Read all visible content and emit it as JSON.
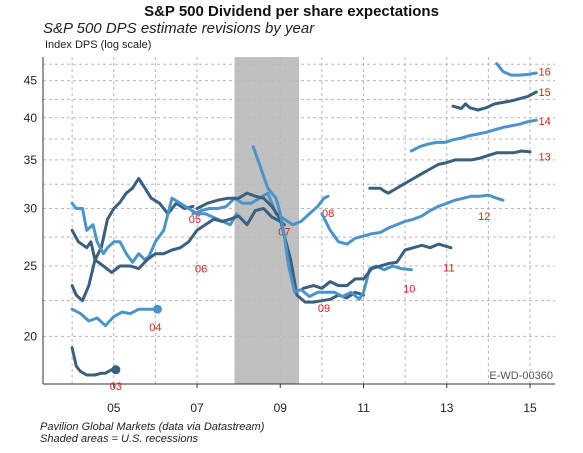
{
  "chart_data": {
    "type": "line",
    "title": "S&P 500 Dividend per share expectations",
    "subtitle": "S&P 500 DPS estimate revisions by year",
    "ylabel": "Index DPS (log scale)",
    "xlabel": "",
    "yscale": "log",
    "ylim": [
      17.2,
      48.5
    ],
    "xlim": [
      2003.3,
      2015.6
    ],
    "yticks": [
      20,
      25,
      30,
      35,
      40,
      45
    ],
    "xticks": [
      {
        "value": 2005,
        "label": "05"
      },
      {
        "value": 2007,
        "label": "07"
      },
      {
        "value": 2009,
        "label": "09"
      },
      {
        "value": 2011,
        "label": "11"
      },
      {
        "value": 2013,
        "label": "13"
      },
      {
        "value": 2015,
        "label": "15"
      }
    ],
    "recession": [
      2007.9,
      2009.45
    ],
    "grid": true,
    "watermark": "E-WD-00360",
    "colors": {
      "dark": "#3b5f7f",
      "light": "#4b94c9",
      "label": "#e0201b",
      "recession": "#c0c0c0",
      "grid": "#b8b8b8"
    },
    "series": [
      {
        "name": "03",
        "color": "#3b5f7f",
        "end_marker": true,
        "label_pos": [
          2005.05,
          17.1
        ],
        "x": [
          2004.0,
          2004.1,
          2004.2,
          2004.35,
          2004.55,
          2004.7,
          2004.8,
          2004.95,
          2005.05
        ],
        "y": [
          19.3,
          18.2,
          17.9,
          17.7,
          17.7,
          17.8,
          17.8,
          18.0,
          18.0
        ]
      },
      {
        "name": "04",
        "color": "#4b94c9",
        "end_marker": true,
        "label_pos": [
          2006.0,
          20.6
        ],
        "x": [
          2004.0,
          2004.2,
          2004.4,
          2004.6,
          2004.8,
          2005.0,
          2005.2,
          2005.4,
          2005.6,
          2005.8,
          2006.05
        ],
        "y": [
          21.8,
          21.5,
          21.0,
          21.2,
          20.7,
          21.3,
          21.6,
          21.5,
          21.8,
          21.8,
          21.8
        ]
      },
      {
        "name": "05",
        "color": "#3b5f7f",
        "label_pos": [
          2006.95,
          29.0
        ],
        "x": [
          2004.0,
          2004.1,
          2004.25,
          2004.4,
          2004.55,
          2004.7,
          2004.85,
          2005.0,
          2005.15,
          2005.3,
          2005.45,
          2005.6,
          2005.75,
          2005.9,
          2006.1,
          2006.3,
          2006.5,
          2006.7,
          2006.9
        ],
        "y": [
          23.5,
          22.8,
          22.4,
          23.5,
          25.5,
          26.5,
          29.0,
          30.0,
          30.6,
          31.5,
          32.0,
          33.0,
          32.0,
          31.0,
          30.5,
          29.5,
          30.5,
          30.0,
          30.2
        ]
      },
      {
        "name": "06",
        "color": "#4b94c9",
        "label_pos": [
          2007.1,
          24.8
        ],
        "x": [
          2004.0,
          2004.1,
          2004.25,
          2004.35,
          2004.5,
          2004.6,
          2004.75,
          2004.85,
          2005.0,
          2005.15,
          2005.3,
          2005.45,
          2005.6,
          2005.75,
          2005.85,
          2006.0,
          2006.2,
          2006.4,
          2006.6,
          2006.8,
          2007.0,
          2007.2,
          2007.5,
          2007.8,
          2007.95
        ],
        "y": [
          30.5,
          30.0,
          30.0,
          28.0,
          28.5,
          27.0,
          26.0,
          26.5,
          27.0,
          27.0,
          26.0,
          25.3,
          26.0,
          25.5,
          25.8,
          27.0,
          28.0,
          31.0,
          30.5,
          30.0,
          29.5,
          29.5,
          29.0,
          28.5,
          29.5
        ]
      },
      {
        "name": "07",
        "color": "#3b5f7f",
        "label_pos": [
          2009.1,
          27.9
        ],
        "x": [
          2004.0,
          2004.15,
          2004.35,
          2004.45,
          2004.55,
          2004.75,
          2004.95,
          2005.15,
          2005.4,
          2005.6,
          2005.8,
          2006.0,
          2006.2,
          2006.4,
          2006.6,
          2006.8,
          2007.0,
          2007.2,
          2007.4,
          2007.6,
          2007.8,
          2008.0,
          2008.2,
          2008.4,
          2008.6,
          2008.8,
          2009.0,
          2009.1
        ],
        "y": [
          28.0,
          27.0,
          26.5,
          27.0,
          25.5,
          25.0,
          24.5,
          25.0,
          25.0,
          24.8,
          25.5,
          26.0,
          26.0,
          26.3,
          26.5,
          27.0,
          28.0,
          28.5,
          29.0,
          28.8,
          29.0,
          29.3,
          28.5,
          29.8,
          30.0,
          29.2,
          28.8,
          28.5
        ]
      },
      {
        "name": "08",
        "color": "#4b94c9",
        "label_pos": [
          2010.15,
          29.6
        ],
        "x": [
          2006.9,
          2007.1,
          2007.3,
          2007.5,
          2007.7,
          2007.9,
          2008.1,
          2008.3,
          2008.5,
          2008.7,
          2008.9,
          2009.1,
          2009.3,
          2009.5,
          2009.7,
          2009.9,
          2010.05,
          2010.15
        ],
        "y": [
          29.5,
          29.8,
          30.0,
          30.0,
          30.2,
          31.0,
          30.5,
          30.5,
          31.0,
          31.5,
          29.5,
          29.0,
          28.5,
          28.8,
          29.5,
          30.2,
          31.0,
          31.2
        ]
      },
      {
        "name": "09",
        "color": "#3b5f7f",
        "label_pos": [
          2010.05,
          21.9
        ],
        "x": [
          2007.0,
          2007.25,
          2007.5,
          2007.75,
          2008.0,
          2008.2,
          2008.4,
          2008.6,
          2008.8,
          2009.0,
          2009.1,
          2009.25,
          2009.4,
          2009.6,
          2009.8,
          2010.0,
          2010.2,
          2010.4,
          2010.6,
          2010.8,
          2011.0
        ],
        "y": [
          30.0,
          30.5,
          30.8,
          31.0,
          31.0,
          31.5,
          31.2,
          31.0,
          30.2,
          29.0,
          27.5,
          25.5,
          22.8,
          22.3,
          22.3,
          22.4,
          22.5,
          22.8,
          22.6,
          23.0,
          22.8
        ]
      },
      {
        "name": "10",
        "color": "#4b94c9",
        "label_pos": [
          2012.1,
          23.3
        ],
        "x": [
          2008.35,
          2008.5,
          2008.7,
          2008.9,
          2009.0,
          2009.1,
          2009.2,
          2009.35,
          2009.5,
          2009.7,
          2009.9,
          2010.1,
          2010.3,
          2010.5,
          2010.7,
          2010.9,
          2011.0,
          2011.15,
          2011.3,
          2011.5,
          2011.7,
          2011.9,
          2012.15
        ],
        "y": [
          36.5,
          34.5,
          32.0,
          31.0,
          29.5,
          27.5,
          25.0,
          23.0,
          23.2,
          22.7,
          23.0,
          23.0,
          23.0,
          22.7,
          23.0,
          22.5,
          23.0,
          24.8,
          25.0,
          24.7,
          25.0,
          24.8,
          24.7
        ]
      },
      {
        "name": "11",
        "color": "#3b5f7f",
        "label_pos": [
          2013.05,
          24.9
        ],
        "x": [
          2009.55,
          2009.8,
          2010.0,
          2010.2,
          2010.4,
          2010.6,
          2010.8,
          2011.0,
          2011.2,
          2011.4,
          2011.6,
          2011.8,
          2012.0,
          2012.2,
          2012.4,
          2012.6,
          2012.8,
          2013.1
        ],
        "y": [
          23.3,
          23.5,
          23.3,
          23.8,
          23.5,
          23.5,
          24.0,
          24.0,
          24.8,
          25.0,
          25.2,
          25.3,
          26.3,
          26.5,
          26.7,
          26.5,
          26.8,
          26.5
        ]
      },
      {
        "name": "12",
        "color": "#4b94c9",
        "label_pos": [
          2013.9,
          29.3
        ],
        "x": [
          2010.0,
          2010.2,
          2010.4,
          2010.6,
          2010.8,
          2011.0,
          2011.2,
          2011.4,
          2011.6,
          2011.8,
          2012.0,
          2012.2,
          2012.4,
          2012.6,
          2012.8,
          2013.0,
          2013.2,
          2013.4,
          2013.6,
          2013.8,
          2014.0,
          2014.2,
          2014.35
        ],
        "y": [
          29.5,
          28.0,
          27.0,
          26.8,
          27.3,
          27.5,
          27.7,
          27.8,
          28.2,
          28.5,
          28.8,
          29.0,
          29.3,
          29.8,
          30.2,
          30.5,
          30.8,
          31.0,
          31.2,
          31.2,
          31.3,
          31.0,
          30.8
        ]
      },
      {
        "name": "13",
        "color": "#3b5f7f",
        "label_pos": [
          2015.35,
          35.4
        ],
        "x": [
          2011.15,
          2011.4,
          2011.5,
          2011.6,
          2011.8,
          2012.0,
          2012.2,
          2012.4,
          2012.6,
          2012.8,
          2013.0,
          2013.2,
          2013.4,
          2013.6,
          2013.8,
          2014.0,
          2014.2,
          2014.4,
          2014.6,
          2014.8,
          2015.0
        ],
        "y": [
          32.0,
          32.0,
          31.7,
          31.5,
          32.0,
          32.5,
          33.0,
          33.5,
          34.0,
          34.5,
          34.7,
          35.0,
          35.0,
          35.0,
          35.2,
          35.5,
          35.8,
          35.8,
          35.8,
          36.0,
          35.9
        ]
      },
      {
        "name": "14",
        "color": "#4b94c9",
        "label_pos": [
          2015.35,
          39.6
        ],
        "x": [
          2012.15,
          2012.35,
          2012.55,
          2012.75,
          2012.95,
          2013.15,
          2013.35,
          2013.55,
          2013.75,
          2013.95,
          2014.15,
          2014.35,
          2014.55,
          2014.75,
          2014.95,
          2015.15
        ],
        "y": [
          36.0,
          36.5,
          36.8,
          37.0,
          37.0,
          37.3,
          37.5,
          37.8,
          38.0,
          38.2,
          38.5,
          38.8,
          39.0,
          39.2,
          39.5,
          39.7
        ]
      },
      {
        "name": "15",
        "color": "#3b5f7f",
        "label_pos": [
          2015.35,
          43.4
        ],
        "x": [
          2013.15,
          2013.35,
          2013.45,
          2013.55,
          2013.75,
          2013.95,
          2014.15,
          2014.35,
          2014.55,
          2014.75,
          2014.95,
          2015.15
        ],
        "y": [
          41.5,
          41.2,
          41.8,
          41.3,
          41.0,
          41.3,
          41.8,
          42.0,
          42.2,
          42.5,
          42.8,
          43.4
        ]
      },
      {
        "name": "16",
        "color": "#4b94c9",
        "label_pos": [
          2015.35,
          46.3
        ],
        "x": [
          2014.2,
          2014.35,
          2014.55,
          2014.75,
          2014.95,
          2015.15
        ],
        "y": [
          47.5,
          46.3,
          45.8,
          45.8,
          45.9,
          46.1
        ]
      }
    ],
    "source": [
      "Pavilion Global Markets (data via Datastream)",
      "Shaded areas = U.S. recessions"
    ]
  }
}
